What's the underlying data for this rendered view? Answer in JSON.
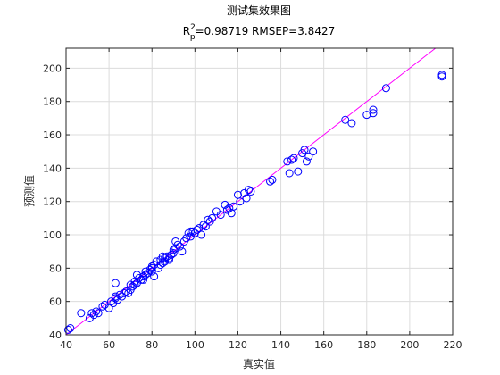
{
  "chart_data": {
    "type": "scatter",
    "title": "测试集效果图",
    "subtitle": {
      "r_symbol": "R",
      "r_superscript": "2",
      "r_subscript": "p",
      "metrics_text": "=0.98719  RMSEP=3.8427"
    },
    "xlabel": "真实值",
    "ylabel": "预测值",
    "xlim": [
      40,
      220
    ],
    "ylim": [
      40,
      212
    ],
    "xticks": [
      40,
      60,
      80,
      100,
      120,
      140,
      160,
      180,
      200,
      220
    ],
    "yticks": [
      40,
      60,
      80,
      100,
      120,
      140,
      160,
      180,
      200
    ],
    "grid": true,
    "colors": {
      "points": "#0000ff",
      "fit_line": "#ff00ff",
      "axes": "#262626",
      "grid": "#dcdcdc"
    },
    "reference_line": {
      "x": [
        40,
        220
      ],
      "y": [
        40,
        220
      ]
    },
    "points": {
      "x": [
        41,
        42,
        47,
        51,
        52,
        53,
        54,
        55,
        57,
        58,
        60,
        61,
        62,
        63,
        63,
        64,
        65,
        66,
        67,
        68,
        69,
        70,
        70,
        71,
        72,
        72,
        73,
        74,
        75,
        76,
        77,
        77,
        78,
        79,
        80,
        80,
        81,
        82,
        83,
        84,
        84,
        85,
        86,
        86,
        87,
        88,
        89,
        90,
        90,
        91,
        92,
        93,
        94,
        95,
        96,
        97,
        98,
        99,
        100,
        101,
        102,
        103,
        104,
        105,
        106,
        107,
        108,
        110,
        112,
        114,
        115,
        116,
        117,
        118,
        120,
        121,
        123,
        124,
        125,
        126,
        135,
        136,
        143,
        144,
        145,
        146,
        148,
        150,
        151,
        152,
        153,
        155,
        170,
        173,
        180,
        183,
        183,
        189,
        215,
        215,
        63,
        73,
        80,
        88,
        76,
        91,
        81,
        85,
        98
      ],
      "y": [
        43,
        44,
        53,
        50,
        53,
        52,
        54,
        53,
        57,
        58,
        56,
        60,
        59,
        63,
        62,
        61,
        64,
        63,
        65,
        66,
        65,
        67,
        70,
        69,
        70,
        72,
        71,
        74,
        73,
        75,
        76,
        78,
        77,
        79,
        80,
        81,
        82,
        84,
        80,
        82,
        85,
        83,
        84,
        86,
        87,
        85,
        88,
        89,
        91,
        92,
        94,
        93,
        90,
        96,
        98,
        101,
        99,
        102,
        101,
        103,
        104,
        100,
        106,
        105,
        109,
        108,
        110,
        114,
        112,
        118,
        115,
        116,
        113,
        117,
        124,
        120,
        125,
        122,
        127,
        126,
        132,
        133,
        144,
        137,
        145,
        146,
        138,
        149,
        151,
        144,
        147,
        150,
        169,
        167,
        172,
        175,
        173,
        188,
        195,
        196,
        71,
        76,
        78,
        86,
        73,
        96,
        75,
        87,
        102
      ]
    }
  }
}
